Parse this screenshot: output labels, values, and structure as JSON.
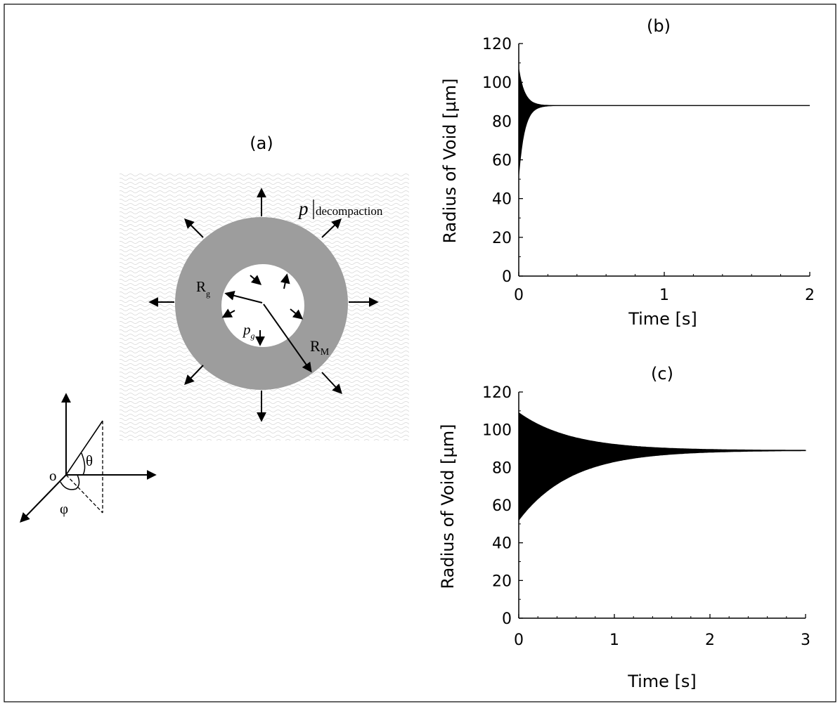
{
  "panel_a": {
    "label": "(a)",
    "pressure_label": "p",
    "pressure_sub": "decompaction",
    "r_g": "R",
    "r_g_sub": "g",
    "r_m": "R",
    "r_m_sub": "M",
    "p_g": "p",
    "p_g_sub": "g",
    "axis_origin": "o",
    "axis_theta": "θ",
    "axis_phi": "φ"
  },
  "chart_data": [
    {
      "id": "b",
      "type": "line",
      "title": "(b)",
      "xlabel": "Time [s]",
      "ylabel": "Radius of Void [µm]",
      "xlim": [
        0,
        2
      ],
      "ylim": [
        0,
        120
      ],
      "xticks": [
        0,
        1,
        2
      ],
      "yticks": [
        0,
        20,
        40,
        60,
        80,
        100,
        120
      ],
      "grid": false,
      "series": [
        {
          "description": "damped oscillation",
          "initial_max": 107,
          "initial_min": 52,
          "equilibrium": 88,
          "decay_time": 0.04
        }
      ]
    },
    {
      "id": "c",
      "type": "line",
      "title": "(c)",
      "xlabel": "Time [s]",
      "ylabel": "Radius of Void [µm]",
      "xlim": [
        0,
        3
      ],
      "ylim": [
        0,
        120
      ],
      "xticks": [
        0,
        1,
        2,
        3
      ],
      "yticks": [
        0,
        20,
        40,
        60,
        80,
        100,
        120
      ],
      "grid": false,
      "series": [
        {
          "description": "damped oscillation",
          "initial_max": 109,
          "initial_min": 52,
          "equilibrium": 89,
          "decay_time": 0.55
        }
      ]
    }
  ]
}
